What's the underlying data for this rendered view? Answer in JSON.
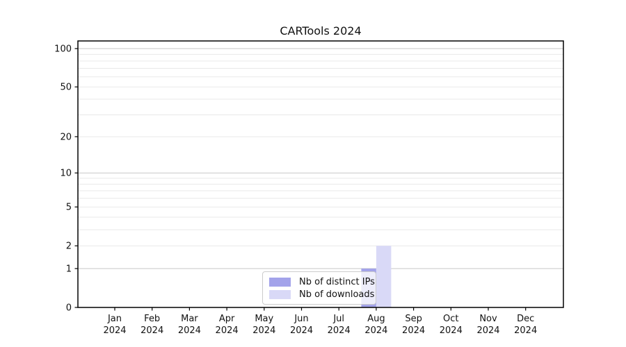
{
  "page": {
    "background": "#ffffff"
  },
  "chart_data": {
    "type": "bar",
    "title": "CARTools 2024",
    "x_categories": [
      {
        "month": "Jan",
        "year": "2024"
      },
      {
        "month": "Feb",
        "year": "2024"
      },
      {
        "month": "Mar",
        "year": "2024"
      },
      {
        "month": "Apr",
        "year": "2024"
      },
      {
        "month": "May",
        "year": "2024"
      },
      {
        "month": "Jun",
        "year": "2024"
      },
      {
        "month": "Jul",
        "year": "2024"
      },
      {
        "month": "Aug",
        "year": "2024"
      },
      {
        "month": "Sep",
        "year": "2024"
      },
      {
        "month": "Oct",
        "year": "2024"
      },
      {
        "month": "Nov",
        "year": "2024"
      },
      {
        "month": "Dec",
        "year": "2024"
      }
    ],
    "series": [
      {
        "name": "Nb of distinct IPs",
        "color": "#a3a3ea",
        "values": [
          0,
          0,
          0,
          0,
          0,
          0,
          0,
          1,
          0,
          0,
          0,
          0
        ]
      },
      {
        "name": "Nb of downloads",
        "color": "#d9d9f7",
        "values": [
          0,
          0,
          0,
          0,
          0,
          0,
          0,
          2,
          0,
          0,
          0,
          0
        ]
      }
    ],
    "y_axis": {
      "scale": "log1p",
      "range": [
        0,
        100
      ],
      "tick_labels": [
        0,
        1,
        2,
        5,
        10,
        20,
        50,
        100
      ],
      "major_gridlines": [
        1,
        10,
        100
      ],
      "minor_gridlines": [
        2,
        3,
        4,
        5,
        6,
        7,
        8,
        9,
        20,
        30,
        40,
        50,
        60,
        70,
        80,
        90
      ]
    },
    "legend": {
      "position": "bottom-center"
    },
    "colors": {
      "grid_major": "#c7c7c7",
      "grid_minor": "#e9e9e9",
      "axis": "#000000",
      "text": "#111111"
    }
  }
}
